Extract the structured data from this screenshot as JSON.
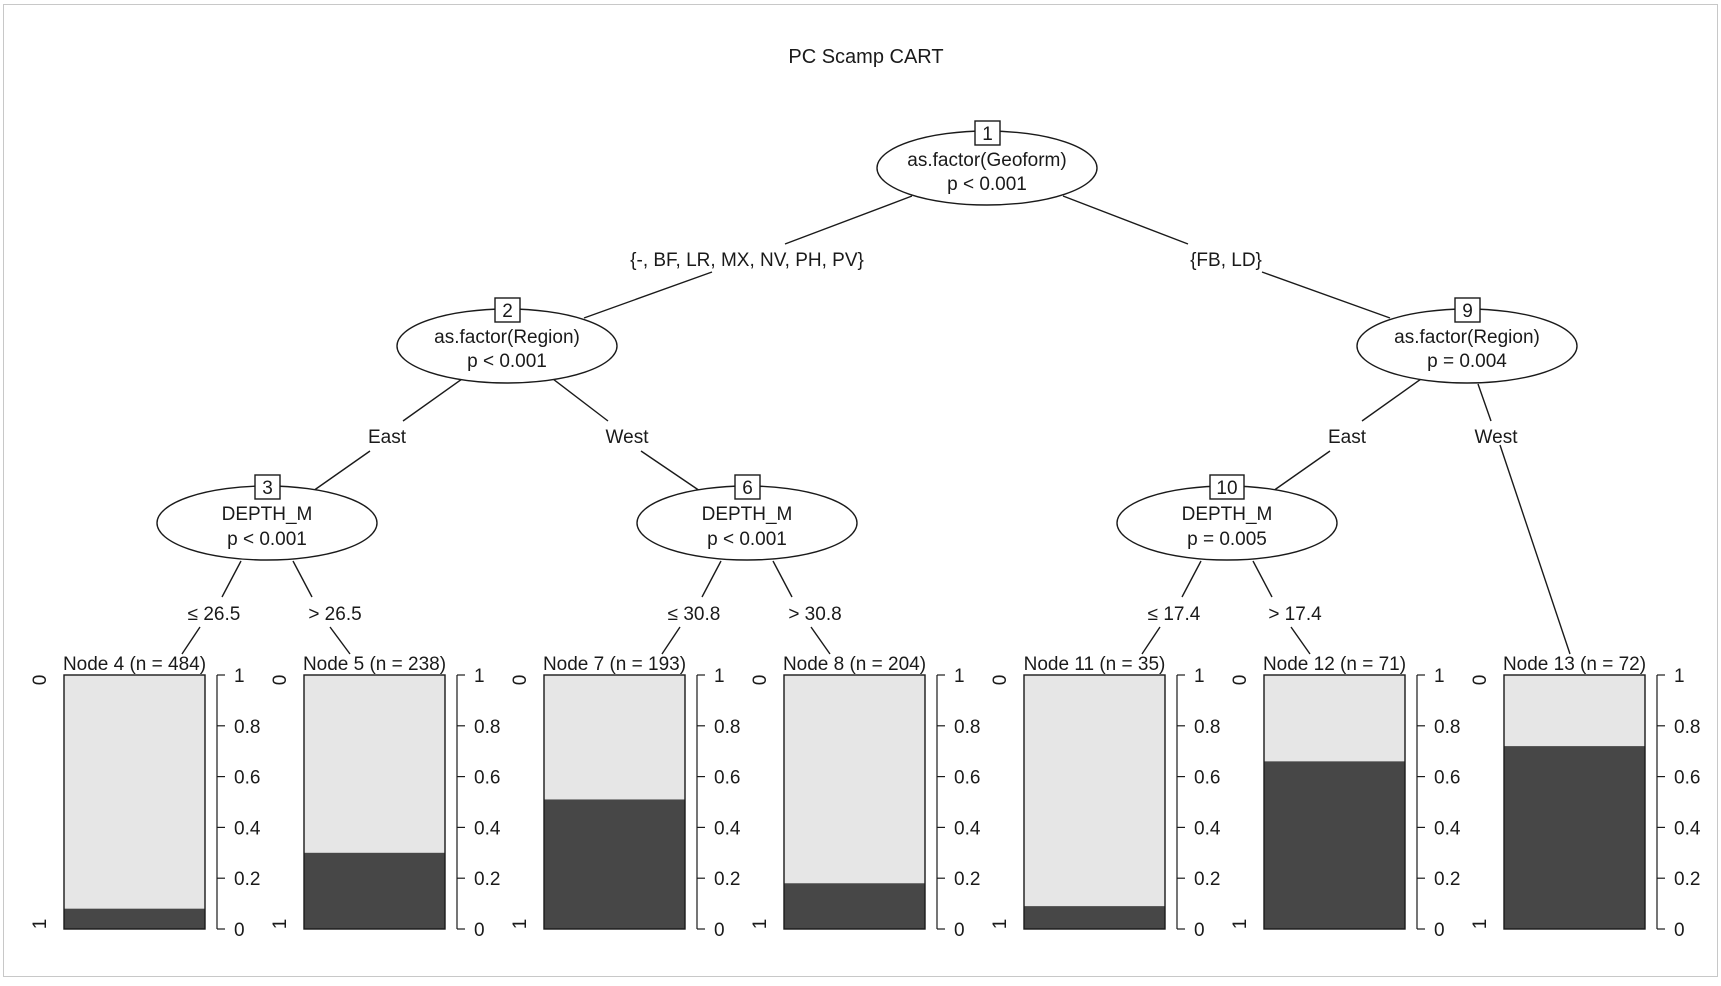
{
  "title": "PC Scamp CART",
  "colors": {
    "bg": "#ffffff",
    "line": "#1a1a1a",
    "dark": "#474747",
    "light": "#e6e6e6"
  },
  "inner_nodes": [
    {
      "id": "1",
      "var": "as.factor(Geoform)",
      "p": "p < 0.001"
    },
    {
      "id": "2",
      "var": "as.factor(Region)",
      "p": "p < 0.001"
    },
    {
      "id": "9",
      "var": "as.factor(Region)",
      "p": "p = 0.004"
    },
    {
      "id": "3",
      "var": "DEPTH_M",
      "p": "p < 0.001"
    },
    {
      "id": "6",
      "var": "DEPTH_M",
      "p": "p < 0.001"
    },
    {
      "id": "10",
      "var": "DEPTH_M",
      "p": "p = 0.005"
    }
  ],
  "edge_labels": [
    {
      "label": "{-, BF, LR, MX, NV, PH, PV}"
    },
    {
      "label": "{FB, LD}"
    },
    {
      "label": "East"
    },
    {
      "label": "West"
    },
    {
      "label": "East"
    },
    {
      "label": "West"
    },
    {
      "label": "≤ 26.5"
    },
    {
      "label": "> 26.5"
    },
    {
      "label": "≤ 30.8"
    },
    {
      "label": "> 30.8"
    },
    {
      "label": "≤ 17.4"
    },
    {
      "label": "> 17.4"
    }
  ],
  "terminal_nodes": [
    {
      "label": "Node 4 (n = 484)",
      "fraction_1": 0.08
    },
    {
      "label": "Node 5 (n = 238)",
      "fraction_1": 0.3
    },
    {
      "label": "Node 7 (n = 193)",
      "fraction_1": 0.51
    },
    {
      "label": "Node 8 (n = 204)",
      "fraction_1": 0.18
    },
    {
      "label": "Node 11 (n = 35)",
      "fraction_1": 0.09
    },
    {
      "label": "Node 12 (n = 71)",
      "fraction_1": 0.66
    },
    {
      "label": "Node 13 (n = 72)",
      "fraction_1": 0.72
    }
  ],
  "bar_axis": {
    "ticks": [
      "0",
      "0.2",
      "0.4",
      "0.6",
      "0.8",
      "1"
    ],
    "class_top": "0",
    "class_bottom": "1"
  }
}
